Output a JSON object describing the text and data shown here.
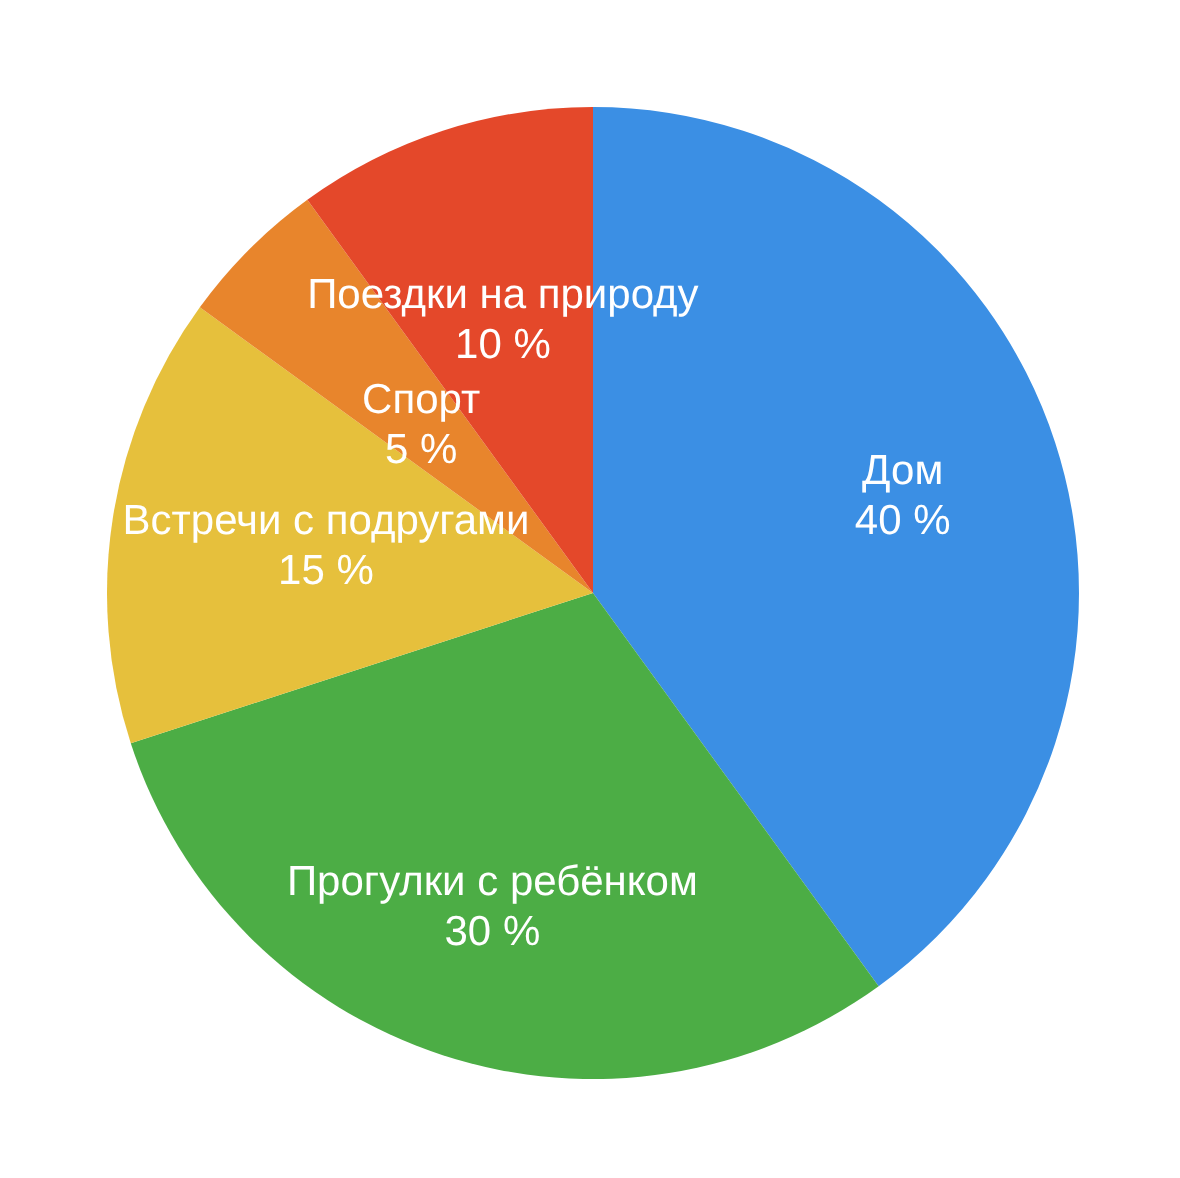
{
  "chart_data": {
    "type": "pie",
    "categories": [
      "Дом",
      "Прогулки с ребёнком",
      "Встречи с подругами",
      "Спорт",
      "Поездки на природу"
    ],
    "values": [
      40,
      30,
      15,
      5,
      10
    ],
    "value_labels": [
      "40 %",
      "30 %",
      "15 %",
      "5 %",
      "10 %"
    ],
    "colors": [
      "#3b8fe4",
      "#4cad45",
      "#e6c03c",
      "#e8852c",
      "#e4482a"
    ]
  }
}
